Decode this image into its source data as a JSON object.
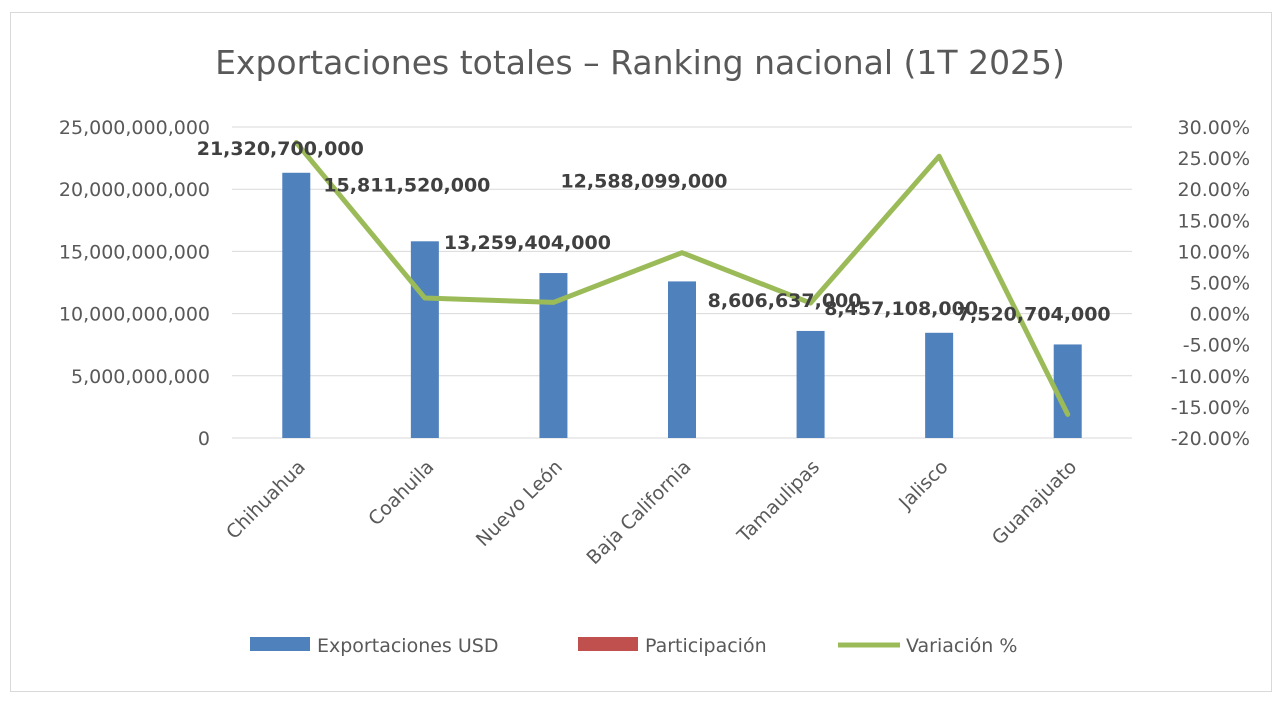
{
  "chart_data": {
    "type": "bar",
    "title": "Exportaciones totales – Ranking nacional (1T 2025)",
    "categories": [
      "Chihuahua",
      "Coahuila",
      "Nuevo León",
      "Baja California",
      "Tamaulipas",
      "Jalisco",
      "Guanajuato"
    ],
    "series": [
      {
        "name": "Exportaciones USD",
        "type": "bar",
        "axis": "left",
        "color": "#4f81bd",
        "values": [
          21320700000,
          15811520000,
          13259404000,
          12588099000,
          8606637000,
          8457108000,
          7520704000
        ],
        "labels": [
          "21,320,700,000",
          "15,811,520,000",
          "13,259,404,000",
          "12,588,099,000",
          "8,606,637,000",
          "8,457,108,000",
          "7,520,704,000"
        ]
      },
      {
        "name": "Participación",
        "type": "bar",
        "axis": "left",
        "color": "#c0504d",
        "values": [
          0,
          0,
          0,
          0,
          0,
          0,
          0
        ]
      },
      {
        "name": "Variación %",
        "type": "line",
        "axis": "right",
        "color": "#9bbb59",
        "values": [
          27.5,
          2.5,
          1.8,
          9.8,
          1.7,
          25.3,
          -16.2
        ]
      }
    ],
    "y_left": {
      "min": 0,
      "max": 25000000000,
      "ticks": [
        0,
        5000000000,
        10000000000,
        15000000000,
        20000000000,
        25000000000
      ],
      "tick_labels": [
        "0",
        "5,000,000,000",
        "10,000,000,000",
        "15,000,000,000",
        "20,000,000,000",
        "25,000,000,000"
      ]
    },
    "y_right": {
      "min": -20,
      "max": 30,
      "ticks": [
        -20,
        -15,
        -10,
        -5,
        0,
        5,
        10,
        15,
        20,
        25,
        30
      ],
      "tick_labels": [
        "-20.00%",
        "-15.00%",
        "-10.00%",
        "-5.00%",
        "0.00%",
        "5.00%",
        "10.00%",
        "15.00%",
        "20.00%",
        "25.00%",
        "30.00%"
      ]
    },
    "grid": true,
    "legend_position": "bottom"
  }
}
